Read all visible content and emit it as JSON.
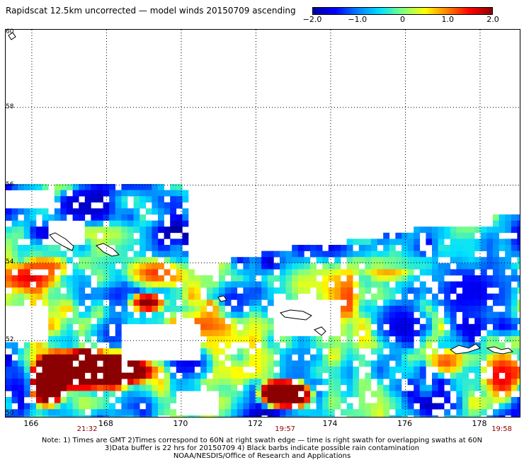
{
  "title": "Rapidscat 12.5km uncorrected — model winds 20150709 ascending",
  "colorbar": {
    "labels": [
      "−2.0",
      "−1.0",
      "0",
      "1.0",
      "2.0"
    ],
    "values": [
      -2.0,
      -1.0,
      0,
      1.0,
      2.0
    ],
    "range": [
      -2.0,
      2.0
    ],
    "colors": [
      "#0000a0",
      "#0000ff",
      "#0080ff",
      "#00e0ff",
      "#80ff80",
      "#ffff00",
      "#ff8000",
      "#ff0000",
      "#8b0000"
    ]
  },
  "map": {
    "lat_range": [
      50,
      60
    ],
    "lon_range": [
      165.3,
      179.1
    ],
    "lat_labels": [
      "60",
      "58",
      "56",
      "54",
      "52",
      "50"
    ],
    "lat_values": [
      60,
      58,
      56,
      54,
      52,
      50
    ],
    "lon_labels": [
      "166",
      "168",
      "170",
      "172",
      "174",
      "176",
      "178"
    ],
    "lon_values": [
      166,
      168,
      170,
      172,
      174,
      176,
      178
    ],
    "time_labels": [
      {
        "text": "21:32",
        "lon": 167.5
      },
      {
        "text": "19:57",
        "lon": 172.8
      },
      {
        "text": "19:58",
        "lon": 178.6
      }
    ],
    "grid": "dotted"
  },
  "notes": [
    "Note: 1) Times are GMT 2)Times correspond to 60N at right swath edge — time is right swath for overlapping swaths at 60N",
    "3)Data buffer is 22 hrs for 20150709 4) Black barbs indicate possible rain contamination",
    "NOAA/NESDIS/Office of Research and Applications"
  ]
}
